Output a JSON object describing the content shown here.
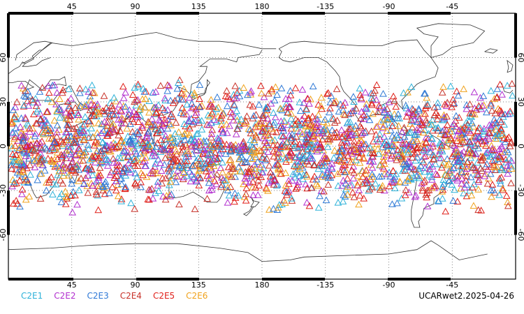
{
  "map": {
    "top_lon_labels": [
      "45",
      "90",
      "135",
      "180",
      "-135",
      "-90",
      "-45"
    ],
    "bottom_lon_labels": [
      "45",
      "90",
      "135",
      "180",
      "-135",
      "-90",
      "-45"
    ],
    "lat_labels": [
      "60",
      "30",
      "0",
      "-30",
      "-60"
    ],
    "marker": "triangle-outline",
    "colors": {
      "C2E1": "#2fb2d9",
      "C2E2": "#b22fcf",
      "C2E3": "#2f79d6",
      "C2E4": "#c8322a",
      "C2E5": "#e0201a",
      "C2E6": "#f0a21c"
    },
    "frame_color": "#000000",
    "grid_style": "dotted"
  },
  "legend": [
    {
      "key": "C2E1",
      "label": "C2E1",
      "color": "#2fb2d9"
    },
    {
      "key": "C2E2",
      "label": "C2E2",
      "color": "#b22fcf"
    },
    {
      "key": "C2E3",
      "label": "C2E3",
      "color": "#2f79d6"
    },
    {
      "key": "C2E4",
      "label": "C2E4",
      "color": "#c8322a"
    },
    {
      "key": "C2E5",
      "label": "C2E5",
      "color": "#e0201a"
    },
    {
      "key": "C2E6",
      "label": "C2E6",
      "color": "#f0a21c"
    }
  ],
  "caption": "UCARwet2.2025-04-26"
}
